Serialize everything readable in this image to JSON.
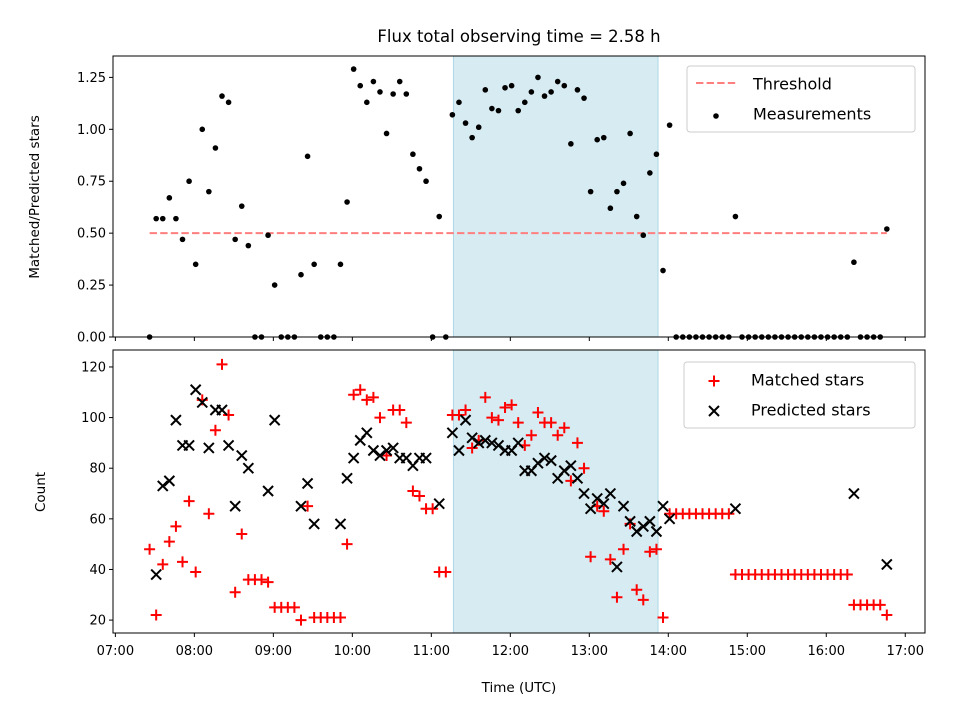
{
  "chart_data": {
    "type": "scatter",
    "title": "Flux total observing time = 2.58 h",
    "xlabel": "Time (UTC)",
    "xlim_hours": [
      6.97,
      17.25
    ],
    "xticks": [
      "07:00",
      "08:00",
      "09:00",
      "10:00",
      "11:00",
      "12:00",
      "13:00",
      "14:00",
      "15:00",
      "16:00",
      "17:00"
    ],
    "time_start": "07:26",
    "interval_minutes": 5,
    "highlight_span_hours": [
      11.28,
      13.87
    ],
    "highlight_color": "#add8e6",
    "panels": [
      {
        "ylabel": "Matched/Predicted stars",
        "ylim": [
          0,
          1.353
        ],
        "yticks": [
          "0.00",
          "0.25",
          "0.50",
          "0.75",
          "1.00",
          "1.25"
        ],
        "ytick_values": [
          0,
          0.25,
          0.5,
          0.75,
          1.0,
          1.25
        ],
        "threshold": 0.5,
        "threshold_color": "#ff7f7f",
        "legend": {
          "position": "top-right",
          "entries": [
            "Threshold",
            "Measurements"
          ]
        },
        "series": [
          {
            "name": "Measurements",
            "color": "#000000",
            "values": [
              0,
              0.57,
              0.57,
              0.67,
              0.57,
              0.47,
              0.75,
              0.35,
              1.0,
              0.7,
              0.91,
              1.16,
              1.13,
              0.47,
              0.63,
              0.44,
              0,
              0,
              0.49,
              0.25,
              0,
              0,
              0,
              0.3,
              0.87,
              0.35,
              0,
              0,
              0,
              0.35,
              0.65,
              1.29,
              1.21,
              1.13,
              1.23,
              1.18,
              0.98,
              1.17,
              1.23,
              1.17,
              0.88,
              0.81,
              0.75,
              0,
              0.58,
              0,
              1.07,
              1.13,
              1.03,
              0.96,
              1.01,
              1.19,
              1.1,
              1.09,
              1.2,
              1.21,
              1.09,
              1.13,
              1.18,
              1.25,
              1.16,
              1.18,
              1.23,
              1.21,
              0.93,
              1.19,
              1.15,
              0.7,
              0.95,
              0.96,
              0.62,
              0.7,
              0.74,
              0.98,
              0.58,
              0.49,
              0.79,
              0.88,
              0.32,
              1.02,
              0,
              0,
              0,
              0,
              0,
              0,
              0,
              0,
              0,
              0.58,
              0,
              0,
              0,
              0,
              0,
              0,
              0,
              0,
              0,
              0,
              0,
              0,
              0,
              0,
              0,
              0,
              0,
              0.36,
              0,
              0,
              0,
              0,
              0.52
            ]
          }
        ]
      },
      {
        "ylabel": "Count",
        "ylim": [
          14.9,
          126.7
        ],
        "yticks": [
          "20",
          "40",
          "60",
          "80",
          "100",
          "120"
        ],
        "ytick_values": [
          20,
          40,
          60,
          80,
          100,
          120
        ],
        "legend": {
          "position": "top-right",
          "entries": [
            "Matched stars",
            "Predicted stars"
          ]
        },
        "series": [
          {
            "name": "Matched stars",
            "color": "#ff0000",
            "marker": "+",
            "values": [
              48,
              22,
              42,
              51,
              57,
              43,
              67,
              39,
              107,
              62,
              95,
              121,
              101,
              31,
              54,
              36,
              36,
              36,
              35,
              25,
              25,
              25,
              25,
              20,
              65,
              21,
              21,
              21,
              21,
              21,
              50,
              109,
              111,
              107,
              108,
              100,
              85,
              103,
              103,
              98,
              71,
              69,
              64,
              64,
              39,
              39,
              101,
              101,
              103,
              88,
              91,
              108,
              100,
              99,
              104,
              105,
              98,
              89,
              93,
              102,
              98,
              98,
              93,
              96,
              75,
              90,
              80,
              45,
              65,
              63,
              44,
              29,
              48,
              58,
              32,
              28,
              47,
              48,
              21,
              62,
              62,
              62,
              62,
              62,
              62,
              62,
              62,
              62,
              62,
              38,
              38,
              38,
              38,
              38,
              38,
              38,
              38,
              38,
              38,
              38,
              38,
              38,
              38,
              38,
              38,
              38,
              38,
              26,
              26,
              26,
              26,
              26,
              22
            ]
          },
          {
            "name": "Predicted stars",
            "color": "#000000",
            "marker": "x",
            "values": [
              null,
              38,
              73,
              75,
              99,
              89,
              89,
              111,
              106,
              88,
              103,
              103,
              89,
              65,
              85,
              80,
              null,
              null,
              71,
              99,
              null,
              null,
              null,
              65,
              74,
              58,
              null,
              null,
              null,
              58,
              76,
              84,
              91,
              94,
              87,
              85,
              87,
              88,
              84,
              84,
              81,
              84,
              84,
              null,
              66,
              null,
              94,
              87,
              99,
              92,
              90,
              91,
              90,
              89,
              87,
              87,
              90,
              79,
              79,
              82,
              84,
              83,
              76,
              79,
              81,
              76,
              70,
              64,
              68,
              66,
              70,
              41,
              65,
              59,
              55,
              57,
              59,
              55,
              65,
              60,
              null,
              null,
              null,
              null,
              null,
              null,
              null,
              null,
              null,
              64,
              null,
              null,
              null,
              null,
              null,
              null,
              null,
              null,
              null,
              null,
              null,
              null,
              null,
              null,
              null,
              null,
              null,
              70,
              null,
              null,
              null,
              null,
              42
            ]
          }
        ]
      }
    ]
  }
}
